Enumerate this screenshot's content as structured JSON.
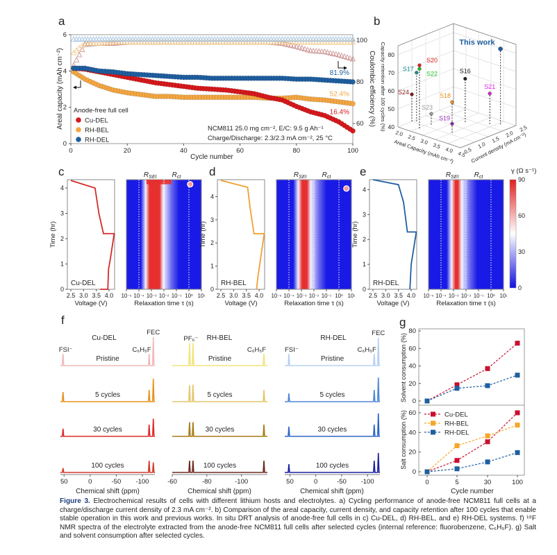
{
  "figure": {
    "caption_label": "Figure 3.",
    "caption_text": "Electrochemical results of cells with different lithium hosts and electrolytes. a) Cycling performance of anode-free NCM811 full cells at a charge/discharge current density of 2.3 mA cm⁻². b) Comparison of the areal capacity, current density, and capacity retention after 100 cycles that enable stable operation in this work and previous works. In situ DRT analysis of anode-free full cells in c) Cu-DEL, d) RH-BEL, and e) RH-DEL systems. f) ¹⁹F NMR spectra of the electrolyte extracted from the anode-free NCM811 full cells after selected cycles (internal reference: fluorobenzene, C₆H₅F). g) Salt and solvent consumption after selected cycles."
  },
  "panel_labels": {
    "a": "a",
    "b": "b",
    "c": "c",
    "d": "d",
    "e": "e",
    "f": "f",
    "g": "g"
  },
  "chart_data": [
    {
      "panel": "a",
      "type": "scatter",
      "xlabel": "Cycle number",
      "ylabel": "Areal capacity (mAh cm⁻²)",
      "y2label": "Coulombic efficiency (%)",
      "xlim": [
        0,
        100
      ],
      "ylim": [
        0,
        6
      ],
      "x_ticks": [
        0,
        20,
        40,
        60,
        80,
        100
      ],
      "y_ticks": [
        0,
        2,
        4,
        6
      ],
      "y2_ticks": [
        60,
        80,
        100
      ],
      "legend_title": "Anode-free full cell",
      "legend_position": "bottom-left",
      "notes": [
        "NCM811 25.0 mg cm⁻², E/C: 9.5 g Ah⁻¹",
        "Charge/Discharge: 2.3/2.3 mA cm⁻², 25 °C"
      ],
      "x": [
        1,
        5,
        10,
        15,
        20,
        25,
        30,
        35,
        40,
        45,
        50,
        55,
        60,
        65,
        70,
        75,
        80,
        85,
        90,
        95,
        100
      ],
      "series": [
        {
          "name": "Cu-DEL",
          "color": "#d7191c",
          "ce_color": "#c98a8a",
          "retention_label": "16.4%",
          "capacity": [
            4.15,
            4.1,
            3.95,
            3.8,
            3.65,
            3.5,
            3.35,
            3.25,
            3.15,
            3.05,
            3.0,
            2.95,
            2.85,
            2.75,
            2.55,
            2.4,
            2.05,
            1.75,
            1.55,
            1.2,
            0.7
          ],
          "coulombic_efficiency": [
            88,
            98,
            98.5,
            98.5,
            99,
            99,
            99,
            99,
            99,
            99,
            99,
            99,
            99,
            99,
            99,
            98.5,
            97,
            95,
            94.5,
            93,
            91
          ]
        },
        {
          "name": "RH-BEL",
          "color": "#f5a742",
          "ce_color": "#f0c98a",
          "retention_label": "52.4%",
          "capacity": [
            3.95,
            3.55,
            3.2,
            2.95,
            2.8,
            2.7,
            2.6,
            2.6,
            2.55,
            2.55,
            2.55,
            2.55,
            2.55,
            2.55,
            2.5,
            2.5,
            2.55,
            2.45,
            2.4,
            2.3,
            2.2
          ],
          "coulombic_efficiency": [
            94,
            98.5,
            98.5,
            99,
            99,
            99,
            99,
            99,
            99,
            99,
            99,
            99,
            99,
            99,
            99,
            99,
            99,
            99,
            99,
            99,
            99
          ]
        },
        {
          "name": "RH-DEL",
          "color": "#1f5fa0",
          "ce_color": "#9bbfe0",
          "retention_label": "81.9%",
          "capacity": [
            4.15,
            4.15,
            4.0,
            3.95,
            3.85,
            3.8,
            3.75,
            3.7,
            3.65,
            3.65,
            3.6,
            3.6,
            3.6,
            3.6,
            3.6,
            3.6,
            3.55,
            3.55,
            3.5,
            3.45,
            3.4
          ],
          "coulombic_efficiency": [
            100.5,
            100.5,
            100.5,
            100.5,
            100.5,
            100.5,
            100.5,
            100.5,
            100.5,
            100.5,
            100.5,
            100.5,
            100.5,
            100.5,
            100.5,
            100.5,
            100.5,
            100.5,
            100.5,
            100.5,
            100.5
          ]
        }
      ]
    },
    {
      "panel": "b",
      "type": "scatter",
      "xlabel": "Areal Capacity (mAh cm⁻²)",
      "ylabel": "Current density (mA cm⁻²)",
      "zlabel": "Capacity retention after 100 cycles (%)",
      "xlim": [
        2.0,
        4.5
      ],
      "ylim": [
        0.5,
        2.5
      ],
      "zlim": [
        40,
        85
      ],
      "x_ticks": [
        2.0,
        2.5,
        3.0,
        3.5,
        4.0,
        4.5
      ],
      "y_ticks": [
        0.5,
        1.0,
        1.5,
        2.0,
        2.5
      ],
      "z_ticks": [
        40,
        50,
        60,
        70,
        80
      ],
      "points": [
        {
          "label": "S20",
          "capacity": 2.55,
          "current": 0.78,
          "retention": 75,
          "color": "#e02020"
        },
        {
          "label": "S22",
          "capacity": 2.55,
          "current": 0.78,
          "retention": 73,
          "color": "#22bb22"
        },
        {
          "label": "S17",
          "capacity": 2.1,
          "current": 1.08,
          "retention": 67,
          "color": "#1a9090"
        },
        {
          "label": "S24",
          "capacity": 2.0,
          "current": 1.0,
          "retention": 55,
          "color": "#8b1a1a"
        },
        {
          "label": "S23",
          "capacity": 2.6,
          "current": 1.16,
          "retention": 46,
          "color": "#999999"
        },
        {
          "label": "S19",
          "capacity": 3.5,
          "current": 1.1,
          "retention": 45,
          "color": "#9b30c0"
        },
        {
          "label": "S18",
          "capacity": 3.5,
          "current": 1.1,
          "retention": 57,
          "color": "#e8901a"
        },
        {
          "label": "S16",
          "capacity": 3.2,
          "current": 1.84,
          "retention": 64,
          "color": "#222222"
        },
        {
          "label": "S21",
          "capacity": 3.85,
          "current": 2.14,
          "retention": 57,
          "color": "#e020e0"
        },
        {
          "label": "This work",
          "capacity": 4.1,
          "current": 2.3,
          "retention": 81.9,
          "color": "#1f5fa0"
        }
      ]
    },
    {
      "panel": "c",
      "type": "heatmap",
      "system": "Cu-DEL",
      "voltage_xlabel": "Voltage (V)",
      "time_ylabel": "Time (hr)",
      "tau_xlabel": "Relaxation time τ (s)",
      "voltage_ticks": [
        2.5,
        3.0,
        3.5,
        4.0
      ],
      "time_ticks": [
        0,
        1,
        2,
        3,
        4
      ],
      "time_max": 4.33,
      "tau_ticks": [
        "10⁻⁵",
        "10⁻⁴",
        "10⁻³",
        "10⁻²",
        "10⁻¹",
        "10⁰",
        "10¹"
      ],
      "peak_labels": {
        "sei_main": "R",
        "sei_sub": "SEI",
        "ct_main": "R",
        "ct_sub": "ct"
      },
      "curve_color": "#d42a2a",
      "voltage_time": [
        [
          3.65,
          0
        ],
        [
          3.95,
          0
        ],
        [
          3.98,
          0.8
        ],
        [
          4.05,
          1.2
        ],
        [
          4.2,
          2.2
        ],
        [
          3.78,
          2.2
        ],
        [
          3.6,
          3.0
        ],
        [
          3.45,
          4.0
        ],
        [
          2.5,
          4.3
        ]
      ],
      "high_gamma_band_log10_tau": [
        -3.4,
        -2.1
      ],
      "top_streak_log10_tau": [
        -3.4,
        -1.4
      ],
      "hotspot": {
        "log10_tau": 0.1,
        "time_hr": 4.15
      },
      "marker_log10_tau": [
        -4,
        -2,
        0
      ]
    },
    {
      "panel": "d",
      "type": "heatmap",
      "system": "RH-BEL",
      "voltage_xlabel": "Voltage (V)",
      "time_ylabel": "Time (hr)",
      "tau_xlabel": "Relaxation time τ (s)",
      "voltage_ticks": [
        2.5,
        3.0,
        3.5,
        4.0
      ],
      "time_ticks": [
        0,
        1,
        2,
        3,
        4
      ],
      "time_max": 4.73,
      "tau_ticks": [
        "10⁻⁵",
        "10⁻⁴",
        "10⁻³",
        "10⁻²",
        "10⁻¹",
        "10⁰",
        "10¹"
      ],
      "peak_labels": {
        "sei_main": "R",
        "sei_sub": "SEI",
        "ct_main": "R",
        "ct_sub": "ct"
      },
      "curve_color": "#f0a030",
      "voltage_time": [
        [
          3.9,
          0
        ],
        [
          3.95,
          0.5
        ],
        [
          4.2,
          2.4
        ],
        [
          3.8,
          2.4
        ],
        [
          3.65,
          3.5
        ],
        [
          3.55,
          4.4
        ],
        [
          2.5,
          4.7
        ]
      ],
      "high_gamma_band_log10_tau": [
        -3.2,
        -2.3
      ],
      "hotspot": {
        "log10_tau": 0.6,
        "time_hr": 4.35
      },
      "marker_log10_tau": [
        -4,
        -2,
        0
      ]
    },
    {
      "panel": "e",
      "type": "heatmap",
      "system": "RH-DEL",
      "voltage_xlabel": "Voltage (V)",
      "time_ylabel": "Time (hr)",
      "tau_xlabel": "Relaxation time τ (s)",
      "voltage_ticks": [
        2.5,
        3.0,
        3.5,
        4.0
      ],
      "time_ticks": [
        0,
        1,
        2,
        3,
        4
      ],
      "time_max": 4.4,
      "tau_ticks": [
        "10⁻⁵",
        "10⁻⁴",
        "10⁻³",
        "10⁻²",
        "10⁻¹",
        "10⁰",
        "10¹"
      ],
      "peak_labels": {
        "sei_main": "R",
        "sei_sub": "SEI",
        "ct_main": "R",
        "ct_sub": "ct"
      },
      "curve_color": "#1f5fa0",
      "voltage_time": [
        [
          3.95,
          0
        ],
        [
          4.0,
          1.0
        ],
        [
          4.2,
          2.3
        ],
        [
          3.85,
          2.3
        ],
        [
          3.7,
          3.5
        ],
        [
          3.5,
          4.2
        ],
        [
          2.5,
          4.4
        ]
      ],
      "high_gamma_band_log10_tau": [
        -3.1,
        -2.4
      ],
      "marker_log10_tau": [
        -4,
        -2,
        0
      ],
      "colorbar": {
        "label": "γ (Ω s⁻¹)",
        "range": [
          0,
          90
        ],
        "ticks": [
          0,
          30,
          60,
          90
        ],
        "colors": [
          "#1010e0",
          "#ffffff",
          "#e02020"
        ]
      }
    },
    {
      "panel": "f",
      "type": "line",
      "xlabel": "Chemical shift (ppm)",
      "cycle_labels": [
        "Pristine",
        "5 cycles",
        "30 cycles",
        "100 cycles"
      ],
      "stacks": [
        {
          "title": "Cu-DEL",
          "xlim": [
            57,
            -124
          ],
          "x_ticks": [
            50,
            0,
            -50,
            -100
          ],
          "colors": [
            "#f2b8b8",
            "#e8921e",
            "#dd2a2a",
            "#d43a2a"
          ],
          "peaks": [
            {
              "label": "FSI⁻",
              "ppm": 52
            },
            {
              "label": "C₆H₅F",
              "ppm": -113
            },
            {
              "label": "FEC",
              "ppm": -121
            }
          ],
          "relative_intensity": [
            [
              1.0,
              1,
              2.4
            ],
            [
              0.82,
              1,
              1.95
            ],
            [
              0.65,
              1,
              1.5
            ],
            [
              0.37,
              1,
              0.85
            ]
          ]
        },
        {
          "title": "RH-BEL",
          "xlim": [
            -60,
            -115
          ],
          "x_ticks": [
            -60,
            -80,
            -100
          ],
          "colors": [
            "#f0e37a",
            "#e5c56a",
            "#a67c14",
            "#6e2a22"
          ],
          "peaks": [
            {
              "label": "PF₆⁻",
              "ppm": -70
            },
            {
              "label": "",
              "ppm": -72
            },
            {
              "label": "C₆H₅F",
              "ppm": -113
            }
          ],
          "relative_intensity": [
            [
              1.9,
              1.9,
              1
            ],
            [
              1.4,
              1.45,
              1
            ],
            [
              1.2,
              1.2,
              1
            ],
            [
              1.0,
              1.0,
              1
            ]
          ]
        },
        {
          "title": "RH-DEL",
          "xlim": [
            60,
            -124
          ],
          "x_ticks": [
            50,
            0,
            -50,
            -100
          ],
          "colors": [
            "#b8d0f2",
            "#4f86d6",
            "#2f66c6",
            "#1a22a0"
          ],
          "peaks": [
            {
              "label": "FSI⁻",
              "ppm": 52
            },
            {
              "label": "C₆H₅F",
              "ppm": -113
            },
            {
              "label": "FEC",
              "ppm": -121
            }
          ],
          "relative_intensity": [
            [
              1.0,
              1,
              2.35
            ],
            [
              0.7,
              1,
              2.05
            ],
            [
              0.82,
              1,
              1.95
            ],
            [
              0.7,
              1,
              1.65
            ]
          ]
        }
      ]
    },
    {
      "panel": "g",
      "type": "line",
      "xlabel": "Cycle number",
      "categories": [
        "0",
        "5",
        "30",
        "100"
      ],
      "legend_position": "top-left of lower plot",
      "top": {
        "ylabel": "Solvent consumption (%)",
        "ylim": [
          0,
          80
        ],
        "y_ticks": [
          0,
          20,
          40,
          60,
          80
        ],
        "series": [
          {
            "name": "Cu-DEL",
            "color": "#c8102e",
            "values": [
              0,
              18.5,
              37,
              66
            ]
          },
          {
            "name": "RH-DEL",
            "color": "#1f5f9f",
            "values": [
              0,
              14.5,
              17.5,
              29.5
            ]
          }
        ]
      },
      "bottom": {
        "ylabel": "Salt consumption (%)",
        "ylim": [
          0,
          68
        ],
        "y_ticks": [
          0,
          20,
          40,
          60
        ],
        "series": [
          {
            "name": "Cu-DEL",
            "color": "#c8102e",
            "values": [
              0,
              11.5,
              30.5,
              60
            ]
          },
          {
            "name": "RH-BEL",
            "color": "#f5a623",
            "values": [
              0,
              26.5,
              36.5,
              47.5
            ]
          },
          {
            "name": "RH-DEL",
            "color": "#1f5f9f",
            "values": [
              0,
              3,
              10,
              19.5
            ]
          }
        ]
      }
    }
  ]
}
